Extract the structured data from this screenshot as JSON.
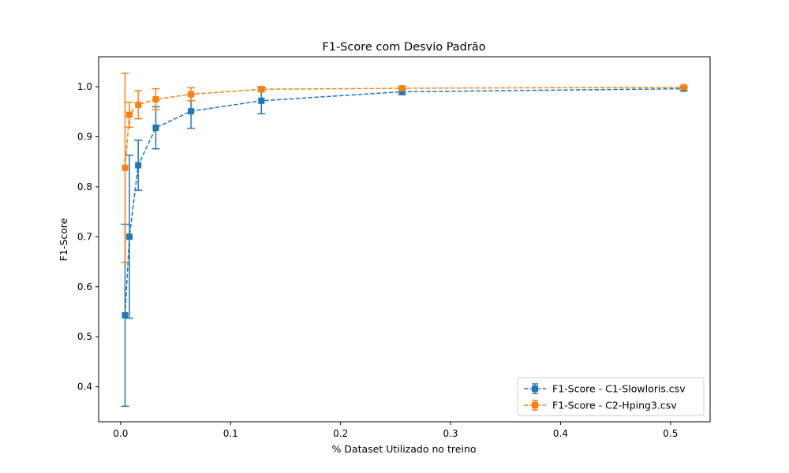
{
  "chart_data": {
    "type": "line",
    "title": "F1-Score com Desvio Padrão",
    "xlabel": "% Dataset Utilizado no treino",
    "ylabel": "F1-Score",
    "xlim": [
      -0.02,
      0.536
    ],
    "ylim": [
      0.33,
      1.06
    ],
    "xticks": [
      0.0,
      0.1,
      0.2,
      0.3,
      0.4,
      0.5
    ],
    "xtick_labels": [
      "0.0",
      "0.1",
      "0.2",
      "0.3",
      "0.4",
      "0.5"
    ],
    "yticks": [
      0.4,
      0.5,
      0.6,
      0.7,
      0.8,
      0.9,
      1.0
    ],
    "ytick_labels": [
      "0.4",
      "0.5",
      "0.6",
      "0.7",
      "0.8",
      "0.9",
      "1.0"
    ],
    "grid": false,
    "legend_position": "bottom-right",
    "series": [
      {
        "name": "F1-Score - C1-Slowloris.csv",
        "color": "#1f77b4",
        "x": [
          0.004,
          0.008,
          0.016,
          0.032,
          0.064,
          0.128,
          0.256,
          0.512
        ],
        "y": [
          0.543,
          0.7,
          0.843,
          0.918,
          0.951,
          0.972,
          0.99,
          0.996
        ],
        "err": [
          0.182,
          0.163,
          0.05,
          0.042,
          0.034,
          0.026,
          0.006,
          0.003
        ]
      },
      {
        "name": "F1-Score - C2-Hping3.csv",
        "color": "#ff7f0e",
        "x": [
          0.004,
          0.008,
          0.016,
          0.032,
          0.064,
          0.128,
          0.256,
          0.512
        ],
        "y": [
          0.838,
          0.944,
          0.964,
          0.975,
          0.985,
          0.995,
          0.997,
          0.999
        ],
        "err": [
          0.189,
          0.025,
          0.028,
          0.021,
          0.013,
          0.005,
          0.003,
          0.002
        ]
      }
    ]
  }
}
